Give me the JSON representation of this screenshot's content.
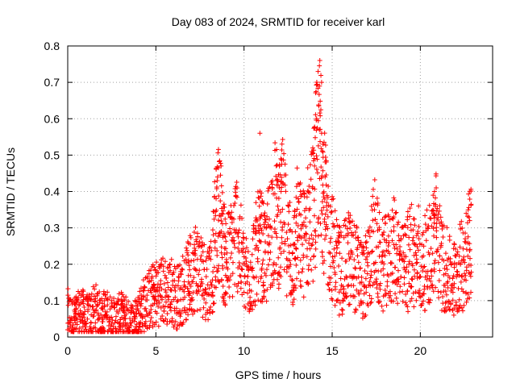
{
  "chart_data": {
    "type": "scatter",
    "title": "Day 083 of 2024, SRMTID for receiver karl",
    "xlabel": "GPS time / hours",
    "ylabel": "SRMTID / TECUs",
    "xlim": [
      0,
      24.1
    ],
    "ylim": [
      0,
      0.8
    ],
    "xticks": [
      0,
      5,
      10,
      15,
      20
    ],
    "yticks": [
      0,
      0.1,
      0.2,
      0.3,
      0.4,
      0.5,
      0.6,
      0.7,
      0.8
    ],
    "grid": true,
    "marker": "+",
    "color": "#ff0000",
    "series": [
      {
        "name": "SRMTID",
        "points": [
          [
            0.0,
            0.065
          ],
          [
            0.3,
            0.045
          ],
          [
            0.5,
            0.055
          ],
          [
            0.8,
            0.07
          ],
          [
            1.0,
            0.05
          ],
          [
            1.3,
            0.06
          ],
          [
            1.6,
            0.075
          ],
          [
            1.9,
            0.05
          ],
          [
            2.1,
            0.065
          ],
          [
            2.4,
            0.055
          ],
          [
            2.7,
            0.045
          ],
          [
            3.0,
            0.06
          ],
          [
            3.2,
            0.05
          ],
          [
            3.5,
            0.04
          ],
          [
            3.8,
            0.045
          ],
          [
            4.0,
            0.06
          ],
          [
            4.2,
            0.08
          ],
          [
            4.5,
            0.1
          ],
          [
            4.8,
            0.11
          ],
          [
            5.0,
            0.12
          ],
          [
            5.3,
            0.13
          ],
          [
            5.6,
            0.12
          ],
          [
            5.9,
            0.125
          ],
          [
            6.2,
            0.11
          ],
          [
            6.5,
            0.13
          ],
          [
            6.8,
            0.15
          ],
          [
            7.0,
            0.18
          ],
          [
            7.3,
            0.2
          ],
          [
            7.6,
            0.17
          ],
          [
            7.9,
            0.15
          ],
          [
            8.2,
            0.18
          ],
          [
            8.4,
            0.3
          ],
          [
            8.6,
            0.35
          ],
          [
            8.8,
            0.25
          ],
          [
            9.0,
            0.2
          ],
          [
            9.3,
            0.24
          ],
          [
            9.6,
            0.3
          ],
          [
            9.9,
            0.2
          ],
          [
            10.2,
            0.15
          ],
          [
            10.5,
            0.2
          ],
          [
            10.8,
            0.25
          ],
          [
            11.0,
            0.25
          ],
          [
            11.2,
            0.2
          ],
          [
            11.5,
            0.3
          ],
          [
            11.8,
            0.35
          ],
          [
            12.0,
            0.3
          ],
          [
            12.2,
            0.35
          ],
          [
            12.5,
            0.25
          ],
          [
            12.8,
            0.2
          ],
          [
            13.0,
            0.3
          ],
          [
            13.3,
            0.25
          ],
          [
            13.6,
            0.3
          ],
          [
            13.9,
            0.35
          ],
          [
            14.1,
            0.45
          ],
          [
            14.3,
            0.6
          ],
          [
            14.5,
            0.4
          ],
          [
            14.7,
            0.3
          ],
          [
            15.0,
            0.25
          ],
          [
            15.3,
            0.2
          ],
          [
            15.6,
            0.18
          ],
          [
            15.9,
            0.22
          ],
          [
            16.2,
            0.2
          ],
          [
            16.5,
            0.18
          ],
          [
            16.8,
            0.15
          ],
          [
            17.1,
            0.2
          ],
          [
            17.4,
            0.28
          ],
          [
            17.7,
            0.2
          ],
          [
            18.0,
            0.2
          ],
          [
            18.3,
            0.22
          ],
          [
            18.6,
            0.25
          ],
          [
            18.9,
            0.18
          ],
          [
            19.2,
            0.2
          ],
          [
            19.5,
            0.24
          ],
          [
            19.8,
            0.2
          ],
          [
            20.1,
            0.18
          ],
          [
            20.4,
            0.22
          ],
          [
            20.7,
            0.25
          ],
          [
            20.9,
            0.3
          ],
          [
            21.2,
            0.2
          ],
          [
            21.5,
            0.18
          ],
          [
            21.8,
            0.15
          ],
          [
            22.1,
            0.18
          ],
          [
            22.4,
            0.2
          ],
          [
            22.7,
            0.25
          ],
          [
            22.9,
            0.28
          ]
        ],
        "extremes": [
          [
            0.0,
            0.02
          ],
          [
            0.4,
            0.09
          ],
          [
            0.9,
            0.11
          ],
          [
            1.7,
            0.12
          ],
          [
            2.5,
            0.1
          ],
          [
            3.3,
            0.11
          ],
          [
            3.9,
            0.02
          ],
          [
            5.8,
            0.2
          ],
          [
            7.2,
            0.23
          ],
          [
            8.5,
            0.44
          ],
          [
            8.7,
            0.47
          ],
          [
            9.1,
            0.34
          ],
          [
            10.3,
            0.07
          ],
          [
            10.9,
            0.56
          ],
          [
            11.6,
            0.42
          ],
          [
            12.1,
            0.4
          ],
          [
            12.6,
            0.37
          ],
          [
            13.2,
            0.4
          ],
          [
            13.9,
            0.52
          ],
          [
            14.0,
            0.47
          ],
          [
            14.2,
            0.73
          ],
          [
            14.3,
            0.76
          ],
          [
            14.4,
            0.7
          ],
          [
            14.4,
            0.56
          ],
          [
            14.6,
            0.44
          ],
          [
            15.4,
            0.06
          ],
          [
            16.0,
            0.09
          ],
          [
            16.9,
            0.06
          ],
          [
            17.4,
            0.35
          ],
          [
            17.6,
            0.11
          ],
          [
            18.5,
            0.33
          ],
          [
            19.3,
            0.07
          ],
          [
            19.9,
            0.36
          ],
          [
            20.8,
            0.4
          ],
          [
            20.9,
            0.41
          ],
          [
            21.4,
            0.08
          ],
          [
            21.9,
            0.06
          ],
          [
            22.6,
            0.34
          ],
          [
            22.8,
            0.32
          ]
        ]
      }
    ]
  }
}
